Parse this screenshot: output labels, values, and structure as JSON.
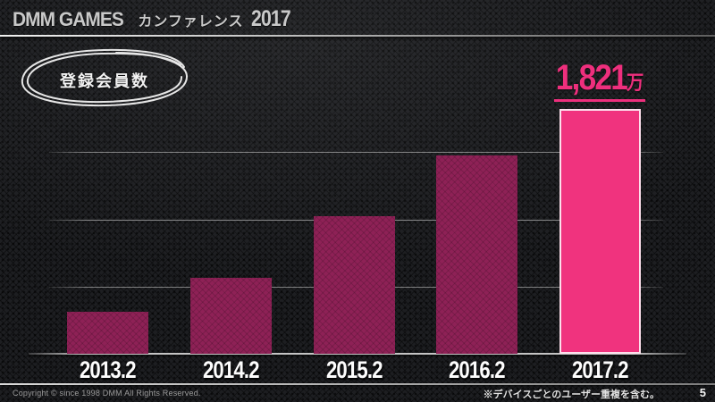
{
  "header": {
    "brand": "DMM GAMES",
    "event": "カンファレンス",
    "year": "2017"
  },
  "badge": {
    "label": "登録会員数"
  },
  "chart_data": {
    "type": "bar",
    "title": "登録会員数",
    "categories": [
      "2013.2",
      "2014.2",
      "2015.2",
      "2016.2",
      "2017.2"
    ],
    "values": [
      310,
      565,
      1025,
      1475,
      1821
    ],
    "unit": "万",
    "annotation": {
      "value": "1,821",
      "unit": "万",
      "category": "2017.2"
    },
    "ylim": [
      0,
      2000
    ],
    "gridline_values": [
      500,
      1000,
      1500
    ],
    "legend": false,
    "colors": {
      "bar": "#8e2156",
      "highlight_bar": "#f0337e",
      "annotation": "#ee2f7d"
    }
  },
  "footer": {
    "copyright": "Copyright © since 1998 DMM All Rights Reserved.",
    "note": "※デバイスごとのユーザー重複を含む。",
    "page": "5"
  }
}
